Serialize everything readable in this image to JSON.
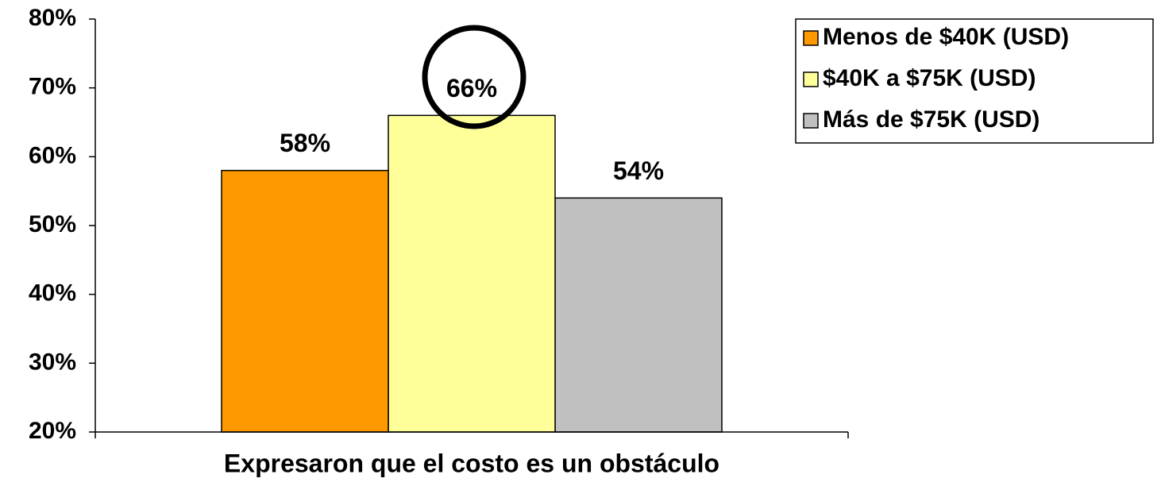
{
  "chart_data": {
    "type": "bar",
    "categories": [
      "Expresaron que el costo es un obstáculo"
    ],
    "series": [
      {
        "name": "Menos de $40K (USD)",
        "color": "#ff9900",
        "values": [
          58
        ],
        "value_labels": [
          "58%"
        ]
      },
      {
        "name": "$40K a $75K (USD)",
        "color": "#ffff99",
        "values": [
          66
        ],
        "value_labels": [
          "66%"
        ]
      },
      {
        "name": "Más de $75K (USD)",
        "color": "#c0c0c0",
        "values": [
          54
        ],
        "value_labels": [
          "54%"
        ]
      }
    ],
    "ylim": [
      20,
      80
    ],
    "yticks": [
      {
        "value": 20,
        "label": "20%"
      },
      {
        "value": 30,
        "label": "30%"
      },
      {
        "value": 40,
        "label": "40%"
      },
      {
        "value": 50,
        "label": "50%"
      },
      {
        "value": 60,
        "label": "60%"
      },
      {
        "value": 70,
        "label": "70%"
      },
      {
        "value": 80,
        "label": "80%"
      }
    ],
    "legend": "top-right"
  }
}
